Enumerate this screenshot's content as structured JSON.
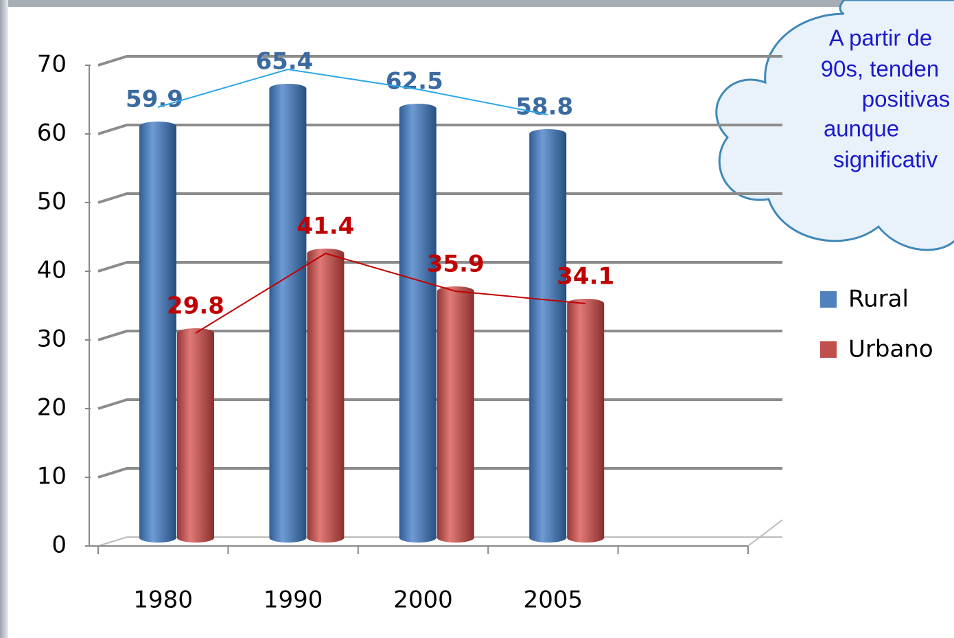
{
  "chart_data": {
    "type": "bar",
    "categories": [
      "1980",
      "1990",
      "2000",
      "2005",
      null
    ],
    "series": [
      {
        "name": "Rural",
        "color": "#4f81bd",
        "label_color": "#3b6aa0",
        "values": [
          59.9,
          65.4,
          62.5,
          58.8,
          null
        ]
      },
      {
        "name": "Urbano",
        "color": "#c0504d",
        "label_color": "#c00000",
        "values": [
          29.8,
          41.4,
          35.9,
          34.1,
          null
        ]
      }
    ],
    "ylim": [
      0,
      70
    ],
    "yticks": [
      0,
      10,
      20,
      30,
      40,
      50,
      60,
      70
    ],
    "grid": true,
    "legend": "right",
    "annotation": [
      "A partir de",
      "90s, tenden",
      "positivas",
      "aunque",
      "significativ"
    ]
  }
}
